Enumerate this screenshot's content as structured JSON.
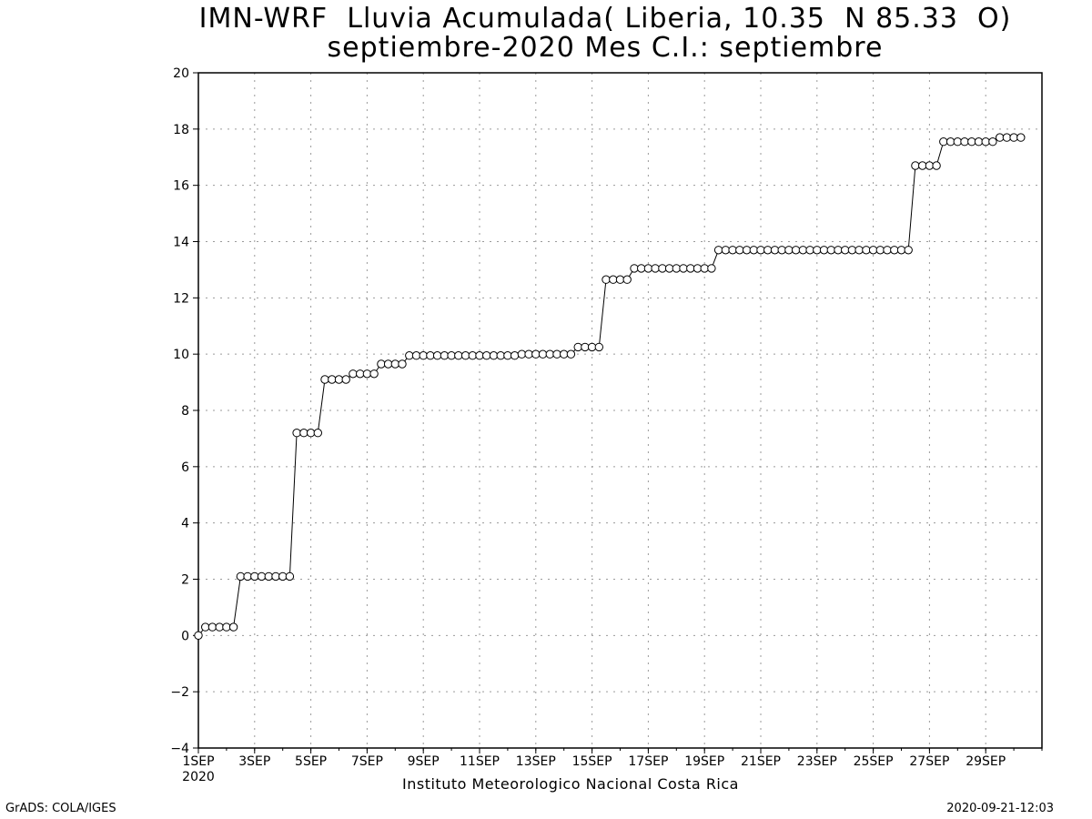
{
  "title_line1": "IMN-WRF  Lluvia Acumulada( Liberia, 10.35  N 85.33  O)",
  "title_line2": "septiembre-2020 Mes C.I.: septiembre",
  "footer": {
    "credit": "GrADS: COLA/IGES",
    "institution": "Instituto Meteorologico Nacional Costa Rica",
    "timestamp": "2020-09-21-12:03"
  },
  "chart_data": {
    "type": "line",
    "marker": "open-circle",
    "grid": true,
    "line_color": "#000000",
    "ylim": [
      -4,
      20
    ],
    "yticks": [
      -4,
      -2,
      0,
      2,
      4,
      6,
      8,
      10,
      12,
      14,
      16,
      18,
      20
    ],
    "xlim": [
      1,
      31
    ],
    "xticks": [
      {
        "day": 1,
        "label": "1SEP",
        "sublabel": "2020"
      },
      {
        "day": 3,
        "label": "3SEP"
      },
      {
        "day": 5,
        "label": "5SEP"
      },
      {
        "day": 7,
        "label": "7SEP"
      },
      {
        "day": 9,
        "label": "9SEP"
      },
      {
        "day": 11,
        "label": "11SEP"
      },
      {
        "day": 13,
        "label": "13SEP"
      },
      {
        "day": 15,
        "label": "15SEP"
      },
      {
        "day": 17,
        "label": "17SEP"
      },
      {
        "day": 19,
        "label": "19SEP"
      },
      {
        "day": 21,
        "label": "21SEP"
      },
      {
        "day": 23,
        "label": "23SEP"
      },
      {
        "day": 25,
        "label": "25SEP"
      },
      {
        "day": 27,
        "label": "27SEP"
      },
      {
        "day": 29,
        "label": "29SEP"
      }
    ],
    "time_step_days": 0.25,
    "values": [
      0,
      0.3,
      0.3,
      0.3,
      0.3,
      0.3,
      2.1,
      2.1,
      2.1,
      2.1,
      2.1,
      2.1,
      2.1,
      2.1,
      7.2,
      7.2,
      7.2,
      7.2,
      9.1,
      9.1,
      9.1,
      9.1,
      9.3,
      9.3,
      9.3,
      9.3,
      9.65,
      9.65,
      9.65,
      9.65,
      9.95,
      9.95,
      9.95,
      9.95,
      9.95,
      9.95,
      9.95,
      9.95,
      9.95,
      9.95,
      9.95,
      9.95,
      9.95,
      9.95,
      9.95,
      9.95,
      10.0,
      10.0,
      10.0,
      10.0,
      10.0,
      10.0,
      10.0,
      10.0,
      10.25,
      10.25,
      10.25,
      10.25,
      12.65,
      12.65,
      12.65,
      12.65,
      13.05,
      13.05,
      13.05,
      13.05,
      13.05,
      13.05,
      13.05,
      13.05,
      13.05,
      13.05,
      13.05,
      13.05,
      13.7,
      13.7,
      13.7,
      13.7,
      13.7,
      13.7,
      13.7,
      13.7,
      13.7,
      13.7,
      13.7,
      13.7,
      13.7,
      13.7,
      13.7,
      13.7,
      13.7,
      13.7,
      13.7,
      13.7,
      13.7,
      13.7,
      13.7,
      13.7,
      13.7,
      13.7,
      13.7,
      13.7,
      16.7,
      16.7,
      16.7,
      16.7,
      17.55,
      17.55,
      17.55,
      17.55,
      17.55,
      17.55,
      17.55,
      17.55,
      17.7,
      17.7,
      17.7,
      17.7
    ]
  }
}
